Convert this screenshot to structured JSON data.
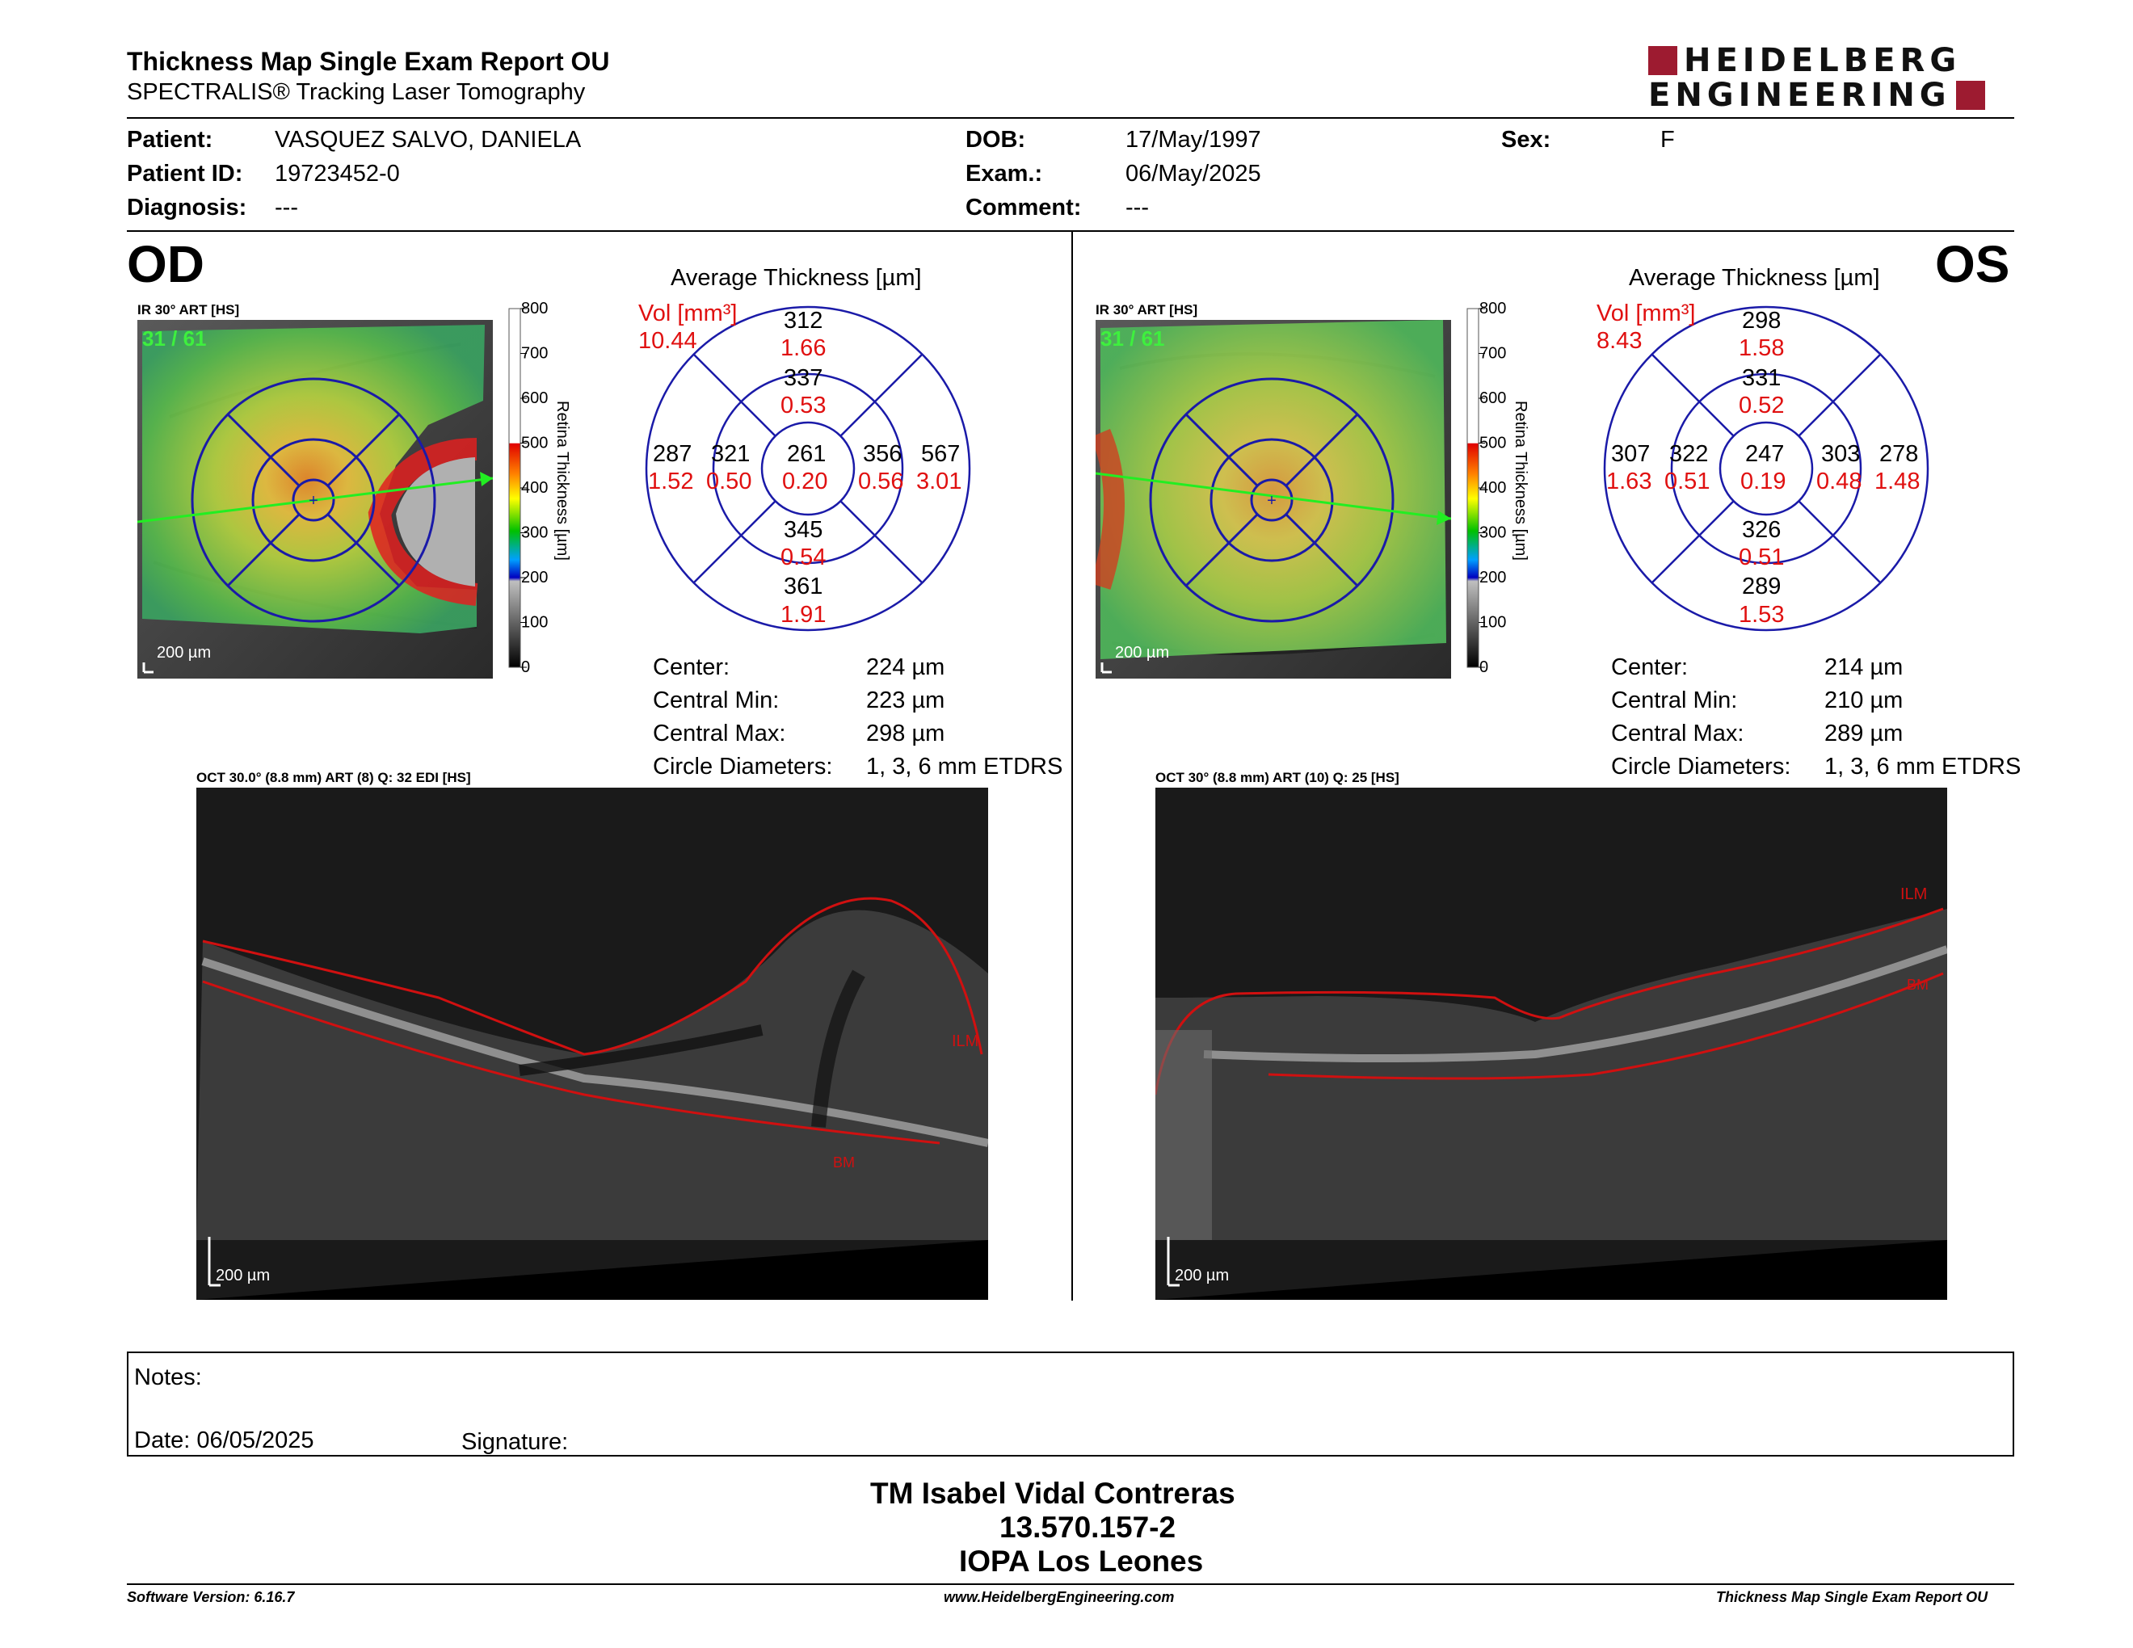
{
  "header": {
    "title": "Thickness Map Single Exam Report OU",
    "subtitle": "SPECTRALIS® Tracking Laser Tomography",
    "logo_line1": "HEIDELBERG",
    "logo_line2": "ENGINEERING"
  },
  "patient": {
    "patient_label": "Patient:",
    "patient_value": "VASQUEZ SALVO, DANIELA",
    "id_label": "Patient ID:",
    "id_value": "19723452-0",
    "diagnosis_label": "Diagnosis:",
    "diagnosis_value": "---",
    "dob_label": "DOB:",
    "dob_value": "17/May/1997",
    "exam_label": "Exam.:",
    "exam_value": "06/May/2025",
    "comment_label": "Comment:",
    "comment_value": "---",
    "sex_label": "Sex:",
    "sex_value": "F"
  },
  "colorbar": {
    "ticks": [
      "800",
      "700",
      "600",
      "500",
      "400",
      "300",
      "200",
      "100",
      "0"
    ],
    "label": "Retina Thickness [µm]"
  },
  "od": {
    "eye": "OD",
    "ir_label": "IR 30° ART [HS]",
    "frame_count": "31 / 61",
    "scale": "200 µm",
    "avg_title": "Average Thickness [µm]",
    "vol_label": "Vol [mm³]",
    "vol_total": "10.44",
    "sectors": {
      "outer_sup": {
        "t": "312",
        "v": "1.66"
      },
      "inner_sup": {
        "t": "337",
        "v": "0.53"
      },
      "outer_left": {
        "t": "287",
        "v": "1.52"
      },
      "inner_left": {
        "t": "321",
        "v": "0.50"
      },
      "center": {
        "t": "261",
        "v": "0.20"
      },
      "inner_right": {
        "t": "356",
        "v": "0.56"
      },
      "outer_right": {
        "t": "567",
        "v": "3.01"
      },
      "inner_inf": {
        "t": "345",
        "v": "0.54"
      },
      "outer_inf": {
        "t": "361",
        "v": "1.91"
      }
    },
    "stats": {
      "center_label": "Center:",
      "center_value": "224 µm",
      "min_label": "Central Min:",
      "min_value": "223 µm",
      "max_label": "Central Max:",
      "max_value": "298 µm",
      "diam_label": "Circle Diameters:",
      "diam_value": "1, 3, 6 mm ETDRS"
    },
    "oct_label": "OCT 30.0° (8.8 mm) ART (8) Q: 32 EDI [HS]",
    "oct_scale": "200 µm",
    "ilm": "ILM",
    "bm": "BM"
  },
  "os": {
    "eye": "OS",
    "ir_label": "IR 30° ART [HS]",
    "frame_count": "31 / 61",
    "scale": "200 µm",
    "avg_title": "Average Thickness [µm]",
    "vol_label": "Vol [mm³]",
    "vol_total": "8.43",
    "sectors": {
      "outer_sup": {
        "t": "298",
        "v": "1.58"
      },
      "inner_sup": {
        "t": "331",
        "v": "0.52"
      },
      "outer_left": {
        "t": "307",
        "v": "1.63"
      },
      "inner_left": {
        "t": "322",
        "v": "0.51"
      },
      "center": {
        "t": "247",
        "v": "0.19"
      },
      "inner_right": {
        "t": "303",
        "v": "0.48"
      },
      "outer_right": {
        "t": "278",
        "v": "1.48"
      },
      "inner_inf": {
        "t": "326",
        "v": "0.51"
      },
      "outer_inf": {
        "t": "289",
        "v": "1.53"
      }
    },
    "stats": {
      "center_label": "Center:",
      "center_value": "214 µm",
      "min_label": "Central Min:",
      "min_value": "210 µm",
      "max_label": "Central Max:",
      "max_value": "289 µm",
      "diam_label": "Circle Diameters:",
      "diam_value": "1, 3, 6 mm ETDRS"
    },
    "oct_label": "OCT 30° (8.8 mm) ART (10) Q: 25 [HS]",
    "oct_scale": "200 µm",
    "ilm": "ILM",
    "bm": "BM"
  },
  "notes": {
    "notes_label": "Notes:",
    "date_label": "Date: 06/05/2025",
    "signature_label": "Signature:"
  },
  "technician": {
    "name": "TM Isabel Vidal Contreras",
    "id": "13.570.157-2",
    "place": "IOPA Los Leones"
  },
  "footer": {
    "software": "Software Version: 6.16.7",
    "website": "www.HeidelbergEngineering.com",
    "report": "Thickness Map Single Exam Report OU"
  },
  "colors": {
    "circle_blue": "#1a1aa8",
    "vol_red": "#e01010",
    "ilm_red": "#d01010",
    "brand_red": "#9d1b30",
    "label_green": "#3ef03e"
  }
}
